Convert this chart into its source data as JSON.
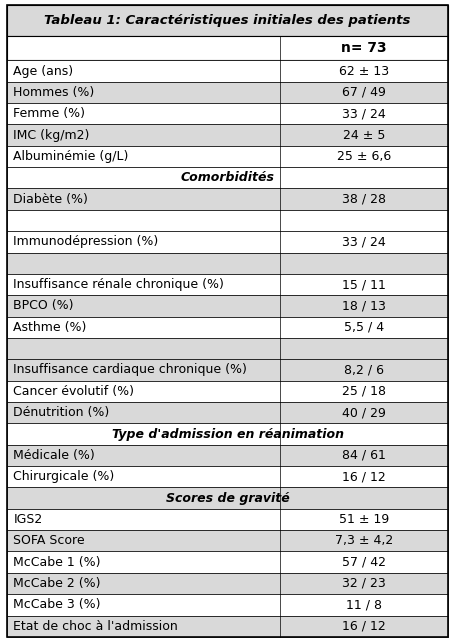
{
  "title": "Tableau 1: Caractéristiques initiales des patients",
  "header_col": "n= 73",
  "rows": [
    {
      "label": "Age (ans)",
      "value": "62 ± 13",
      "type": "data",
      "bg": "white"
    },
    {
      "label": "Hommes (%)",
      "value": "67 / 49",
      "type": "data",
      "bg": "#d9d9d9"
    },
    {
      "label": "Femme (%)",
      "value": "33 / 24",
      "type": "data",
      "bg": "white"
    },
    {
      "label": "IMC (kg/m2)",
      "value": "24 ± 5",
      "type": "data",
      "bg": "#d9d9d9"
    },
    {
      "label": "Albuminémie (g/L)",
      "value": "25 ± 6,6",
      "type": "data",
      "bg": "white"
    },
    {
      "label": "Comorbidités",
      "value": "",
      "type": "section",
      "bg": "white"
    },
    {
      "label": "Diabète (%)",
      "value": "38 / 28",
      "type": "data",
      "bg": "#d9d9d9"
    },
    {
      "label": "",
      "value": "",
      "type": "empty",
      "bg": "white"
    },
    {
      "label": "Immunodépression (%)",
      "value": "33 / 24",
      "type": "data",
      "bg": "white"
    },
    {
      "label": "",
      "value": "",
      "type": "empty",
      "bg": "#d9d9d9"
    },
    {
      "label": "Insuffisance rénale chronique (%)",
      "value": "15 / 11",
      "type": "data",
      "bg": "white"
    },
    {
      "label": "BPCO (%)",
      "value": "18 / 13",
      "type": "data",
      "bg": "#d9d9d9"
    },
    {
      "label": "Asthme (%)",
      "value": "5,5 / 4",
      "type": "data",
      "bg": "white"
    },
    {
      "label": "",
      "value": "",
      "type": "empty",
      "bg": "#d9d9d9"
    },
    {
      "label": "Insuffisance cardiaque chronique (%)",
      "value": "8,2 / 6",
      "type": "data",
      "bg": "#d9d9d9"
    },
    {
      "label": "Cancer évolutif (%)",
      "value": "25 / 18",
      "type": "data",
      "bg": "white"
    },
    {
      "label": "Dénutrition (%)",
      "value": "40 / 29",
      "type": "data",
      "bg": "#d9d9d9"
    },
    {
      "label": "Type d'admission en réanimation",
      "value": "",
      "type": "section",
      "bg": "white"
    },
    {
      "label": "Médicale (%)",
      "value": "84 / 61",
      "type": "data",
      "bg": "#d9d9d9"
    },
    {
      "label": "Chirurgicale (%)",
      "value": "16 / 12",
      "type": "data",
      "bg": "white"
    },
    {
      "label": "Scores de gravité",
      "value": "",
      "type": "section",
      "bg": "#d9d9d9"
    },
    {
      "label": "IGS2",
      "value": "51 ± 19",
      "type": "data",
      "bg": "white"
    },
    {
      "label": "SOFA Score",
      "value": "7,3 ± 4,2",
      "type": "data",
      "bg": "#d9d9d9"
    },
    {
      "label": "McCabe 1 (%)",
      "value": "57 / 42",
      "type": "data",
      "bg": "white"
    },
    {
      "label": "McCabe 2 (%)",
      "value": "32 / 23",
      "type": "data",
      "bg": "#d9d9d9"
    },
    {
      "label": "McCabe 3 (%)",
      "value": "11 / 8",
      "type": "data",
      "bg": "white"
    },
    {
      "label": "Etat de choc à l'admission",
      "value": "16 / 12",
      "type": "data",
      "bg": "#d9d9d9"
    }
  ],
  "title_bg": "#d9d9d9",
  "header_bg": "white",
  "col_split": 0.62,
  "font_size": 9,
  "title_font_size": 9.5,
  "header_font_size": 10
}
